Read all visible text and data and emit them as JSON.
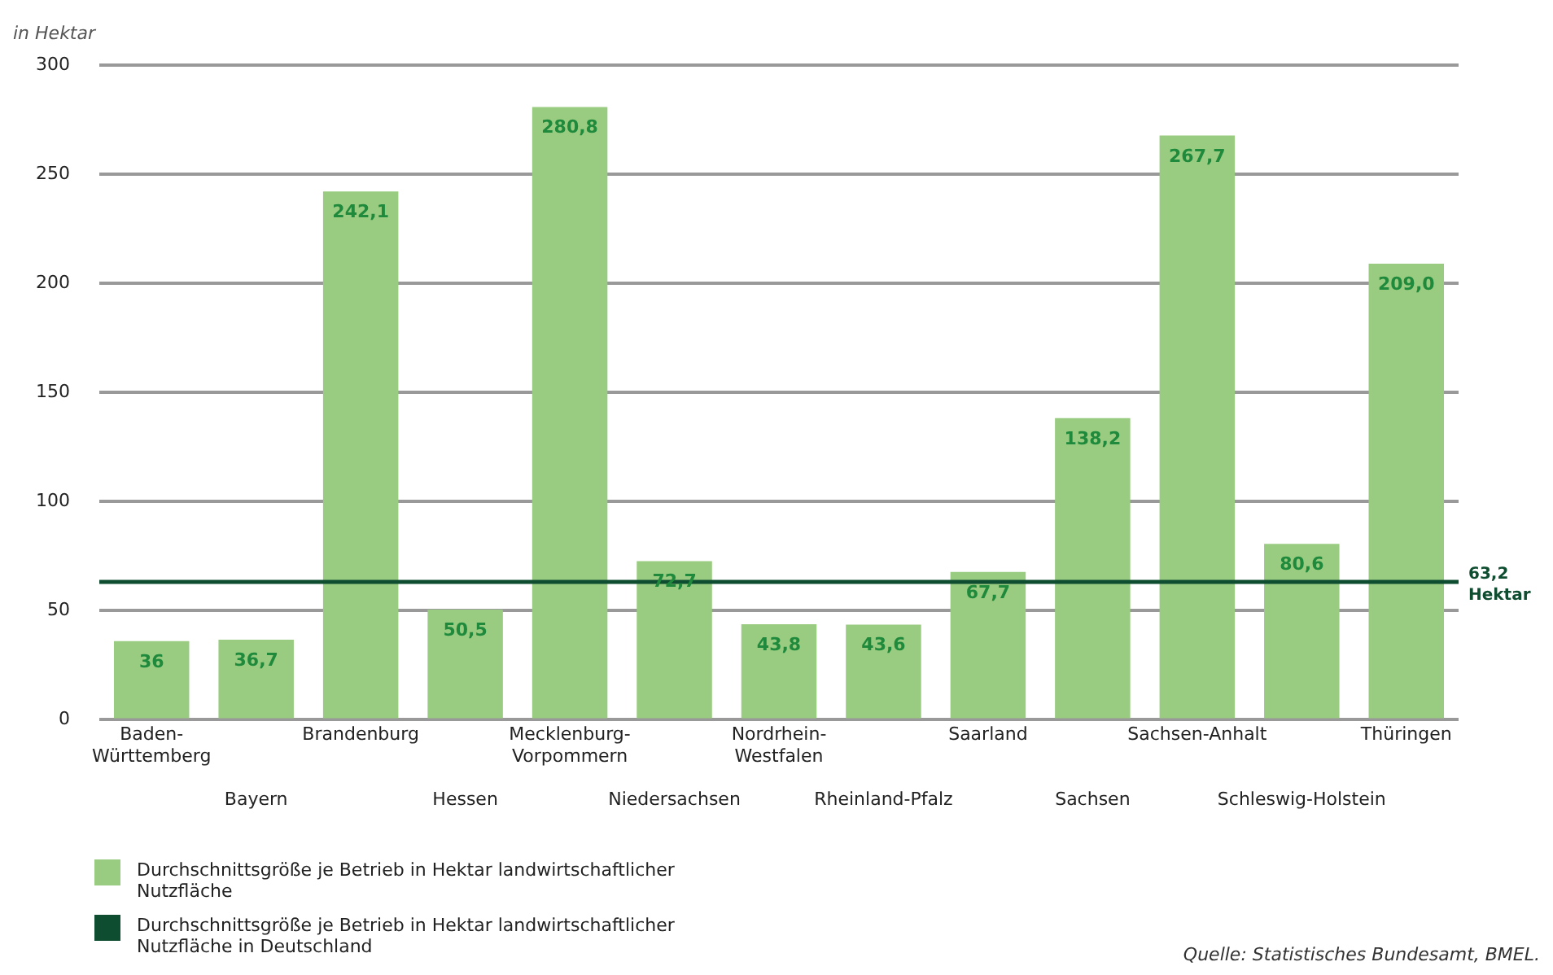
{
  "chart_data": {
    "type": "bar",
    "ylabel": "in Hektar",
    "categories": [
      "Baden-Württemberg",
      "Bayern",
      "Brandenburg",
      "Hessen",
      "Mecklenburg-Vorpommern",
      "Niedersachsen",
      "Nordrhein-Westfalen",
      "Rheinland-Pfalz",
      "Saarland",
      "Sachsen",
      "Sachsen-Anhalt",
      "Schleswig-Holstein",
      "Thüringen"
    ],
    "series": [
      {
        "name": "Durchschnittsgröße je Betrieb in Hektar landwirtschaftlicher Nutzfläche",
        "color": "#99cc80",
        "values": [
          36,
          36.7,
          242.1,
          50.5,
          280.8,
          72.7,
          43.8,
          43.6,
          67.7,
          138.2,
          267.7,
          80.6,
          209.0
        ],
        "value_labels": [
          "36",
          "36,7",
          "242,1",
          "50,5",
          "280,8",
          "72,7",
          "43,8",
          "43,6",
          "67,7",
          "138,2",
          "267,7",
          "80,6",
          "209,0"
        ]
      }
    ],
    "ylim": [
      0,
      300
    ],
    "yticks": [
      0,
      50,
      100,
      150,
      200,
      250,
      300
    ],
    "grid": "y",
    "ref_lines": [
      {
        "axis": "y",
        "value": 63.2,
        "label": "63,2 Hektar",
        "color": "#0f4d30"
      }
    ],
    "annotations": [
      "Durchschnittsgröße je Betrieb in Hektar landwirtschaftlicher Nutzfläche in Deutschland",
      "Quelle: Statistisches Bundesamt, BMEL."
    ],
    "legend": "bottom"
  }
}
